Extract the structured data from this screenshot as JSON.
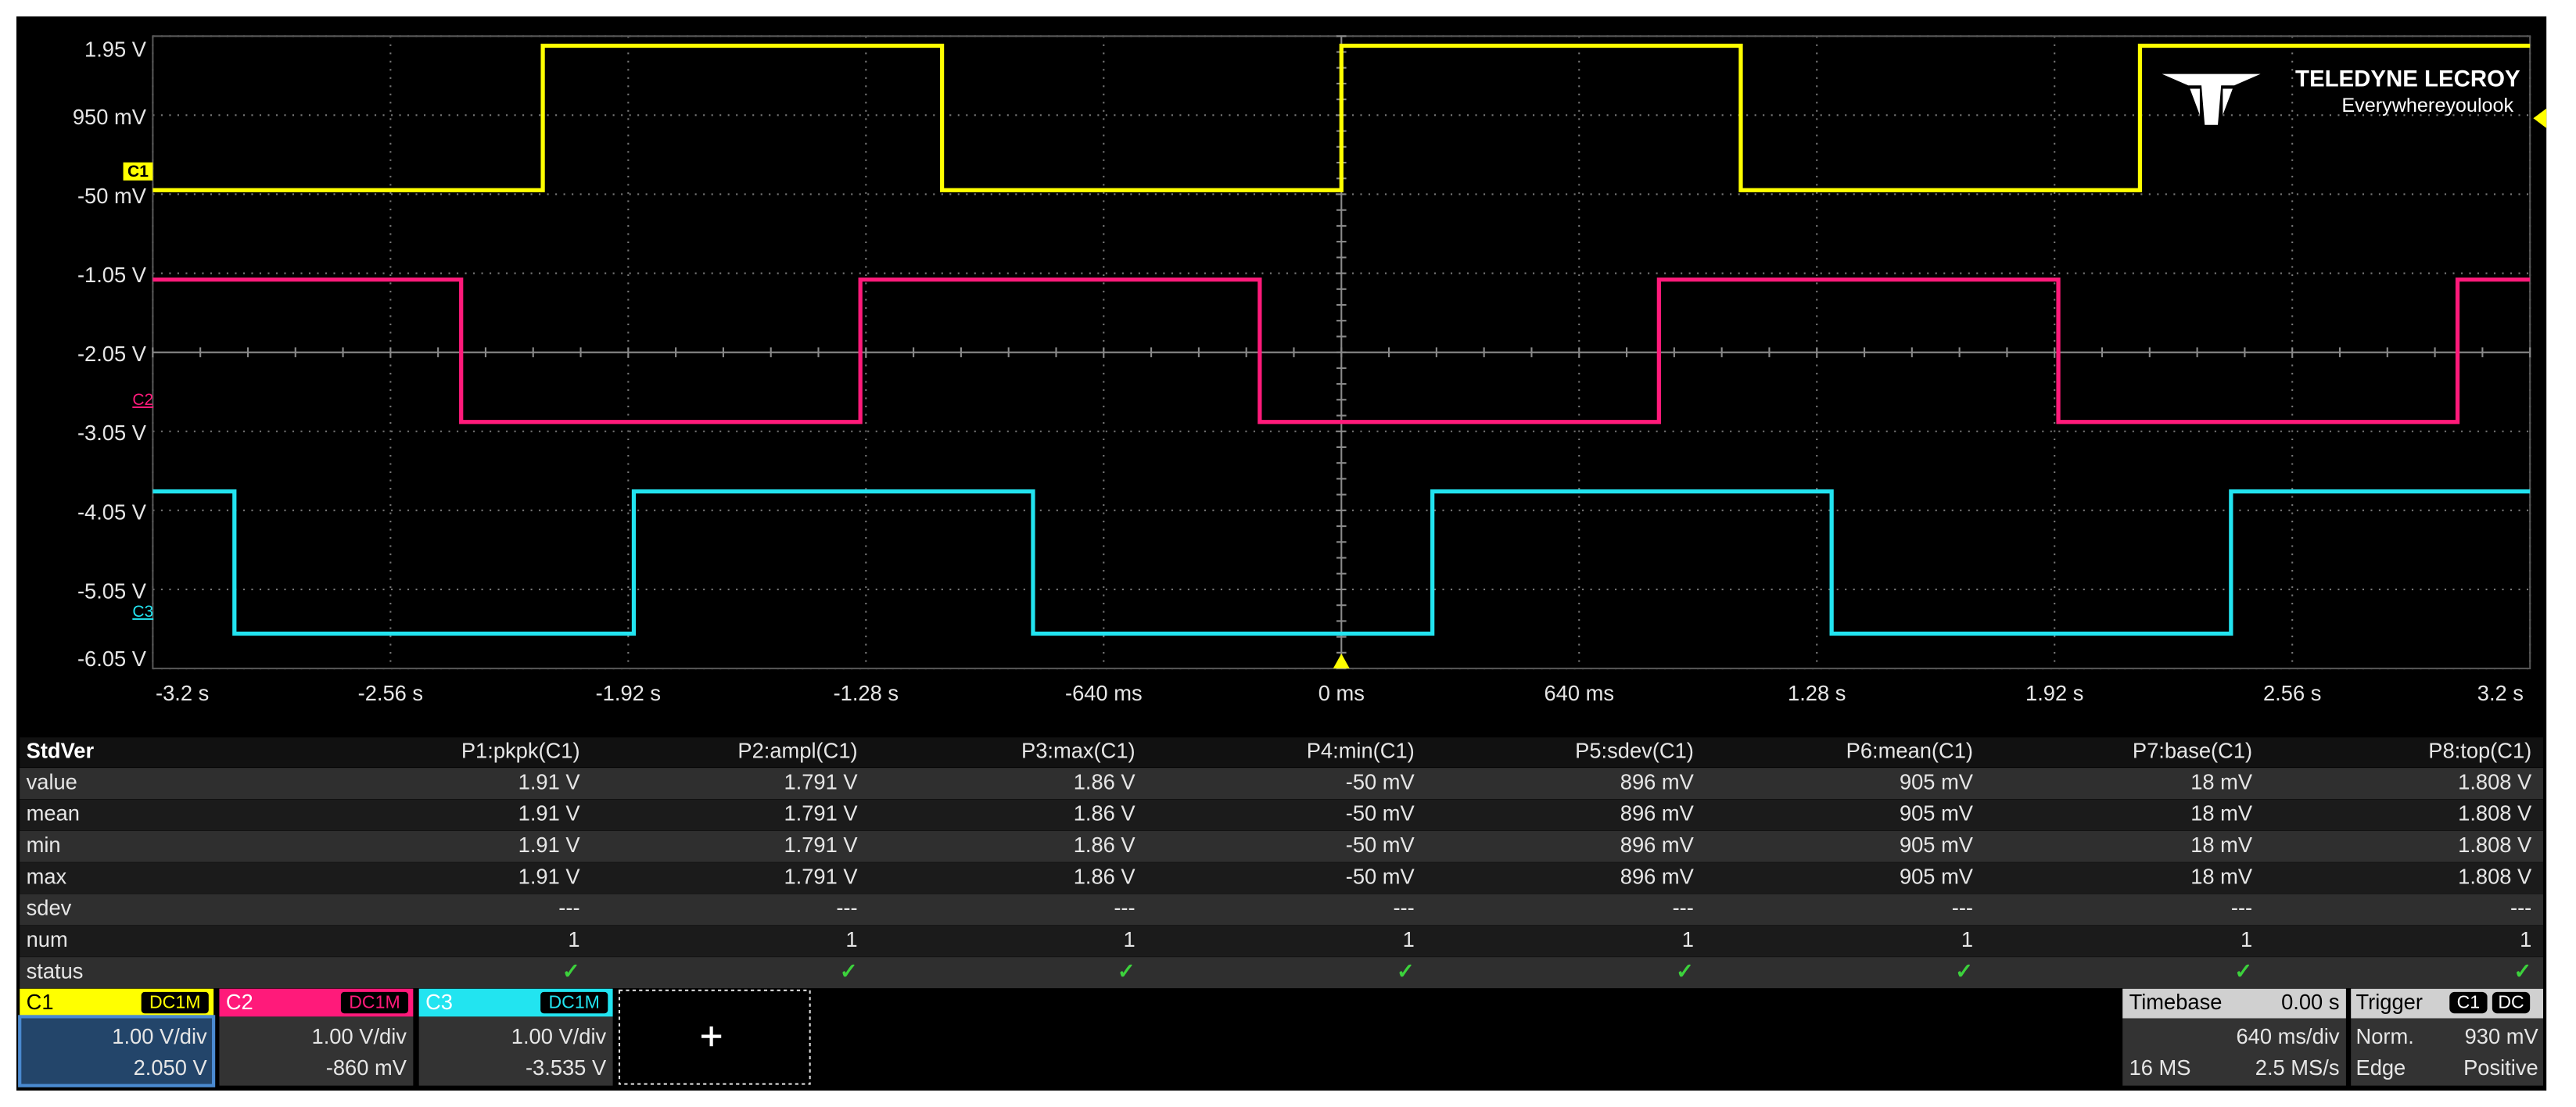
{
  "chart_data": {
    "type": "line",
    "xlim": [
      -3.2,
      3.2
    ],
    "ylim": [
      -6.05,
      1.95
    ],
    "xticks": [
      {
        "value": -3.2,
        "label": "-3.2 s"
      },
      {
        "value": -2.56,
        "label": "-2.56 s"
      },
      {
        "value": -1.92,
        "label": "-1.92 s"
      },
      {
        "value": -1.28,
        "label": "-1.28 s"
      },
      {
        "value": -0.64,
        "label": "-640 ms"
      },
      {
        "value": 0,
        "label": "0 ms"
      },
      {
        "value": 0.64,
        "label": "640 ms"
      },
      {
        "value": 1.28,
        "label": "1.28 s"
      },
      {
        "value": 1.92,
        "label": "1.92 s"
      },
      {
        "value": 2.56,
        "label": "2.56 s"
      },
      {
        "value": 3.2,
        "label": "3.2 s"
      }
    ],
    "yticks": [
      {
        "value": 1.95,
        "label": "1.95 V"
      },
      {
        "value": 0.95,
        "label": "950 mV"
      },
      {
        "value": -0.05,
        "label": "-50 mV"
      },
      {
        "value": -1.05,
        "label": "-1.05 V"
      },
      {
        "value": -2.05,
        "label": "-2.05 V"
      },
      {
        "value": -3.05,
        "label": "-3.05 V"
      },
      {
        "value": -4.05,
        "label": "-4.05 V"
      },
      {
        "value": -5.05,
        "label": "-5.05 V"
      },
      {
        "value": -6.05,
        "label": "-6.05 V"
      }
    ],
    "grid": true,
    "series": [
      {
        "name": "C1",
        "color": "#ffff00",
        "x": [
          -3.2,
          -2.15,
          -2.15,
          -1.075,
          -1.075,
          0,
          0,
          1.075,
          1.075,
          2.15,
          2.15,
          3.2
        ],
        "values": [
          0,
          0,
          1.83,
          1.83,
          0,
          0,
          1.83,
          1.83,
          0,
          0,
          1.83,
          1.83
        ]
      },
      {
        "name": "C2",
        "color": "#ff1a7a",
        "x": [
          -3.2,
          -2.37,
          -2.37,
          -1.295,
          -1.295,
          -0.22,
          -0.22,
          0.855,
          0.855,
          1.93,
          1.93,
          3.005,
          3.005,
          3.2
        ],
        "values": [
          -1.13,
          -1.13,
          -2.93,
          -2.93,
          -1.13,
          -1.13,
          -2.93,
          -2.93,
          -1.13,
          -1.13,
          -2.93,
          -2.93,
          -1.13,
          -1.13
        ]
      },
      {
        "name": "C3",
        "color": "#22e4f0",
        "x": [
          -3.2,
          -2.98,
          -2.98,
          -1.905,
          -1.905,
          -0.83,
          -0.83,
          0.245,
          0.245,
          1.32,
          1.32,
          2.395,
          2.395,
          3.2
        ],
        "values": [
          -3.81,
          -3.81,
          -5.61,
          -5.61,
          -3.81,
          -3.81,
          -5.61,
          -5.61,
          -3.81,
          -3.81,
          -5.61,
          -5.61,
          -3.81,
          -3.81
        ]
      }
    ]
  },
  "logo": {
    "brand": "TELEDYNE LECROY",
    "tagline": "Everywhereyoulook"
  },
  "measurements": {
    "title": "StdVer",
    "columns": [
      "P1:pkpk(C1)",
      "P2:ampl(C1)",
      "P3:max(C1)",
      "P4:min(C1)",
      "P5:sdev(C1)",
      "P6:mean(C1)",
      "P7:base(C1)",
      "P8:top(C1)"
    ],
    "rows": [
      {
        "label": "value",
        "cells": [
          "1.91 V",
          "1.791 V",
          "1.86 V",
          "-50 mV",
          "896 mV",
          "905 mV",
          "18 mV",
          "1.808 V"
        ]
      },
      {
        "label": "mean",
        "cells": [
          "1.91 V",
          "1.791 V",
          "1.86 V",
          "-50 mV",
          "896 mV",
          "905 mV",
          "18 mV",
          "1.808 V"
        ]
      },
      {
        "label": "min",
        "cells": [
          "1.91 V",
          "1.791 V",
          "1.86 V",
          "-50 mV",
          "896 mV",
          "905 mV",
          "18 mV",
          "1.808 V"
        ]
      },
      {
        "label": "max",
        "cells": [
          "1.91 V",
          "1.791 V",
          "1.86 V",
          "-50 mV",
          "896 mV",
          "905 mV",
          "18 mV",
          "1.808 V"
        ]
      },
      {
        "label": "sdev",
        "cells": [
          "---",
          "---",
          "---",
          "---",
          "---",
          "---",
          "---",
          "---"
        ]
      },
      {
        "label": "num",
        "cells": [
          "1",
          "1",
          "1",
          "1",
          "1",
          "1",
          "1",
          "1"
        ]
      },
      {
        "label": "status",
        "cells": [
          "✓",
          "✓",
          "✓",
          "✓",
          "✓",
          "✓",
          "✓",
          "✓"
        ]
      }
    ]
  },
  "channels": [
    {
      "coupling": "DC1M",
      "scale": "1.00 V/div",
      "offset": "2.050 V"
    },
    {
      "coupling": "DC1M",
      "scale": "1.00 V/div",
      "offset": "-860 mV"
    },
    {
      "coupling": "DC1M",
      "scale": "1.00 V/div",
      "offset": "-3.535 V"
    }
  ],
  "timebase": {
    "label": "Timebase",
    "delay": "0.00 s",
    "scale": "640 ms/div",
    "samples": "16 MS",
    "rate": "2.5 MS/s"
  },
  "trigger": {
    "label": "Trigger",
    "source": "C1",
    "coupling": "DC",
    "mode": "Norm.",
    "level": "930 mV",
    "type": "Edge",
    "slope": "Positive"
  }
}
